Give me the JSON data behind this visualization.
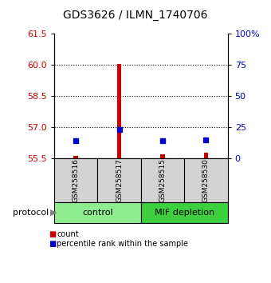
{
  "title": "GDS3626 / ILMN_1740706",
  "samples": [
    "GSM258516",
    "GSM258517",
    "GSM258515",
    "GSM258530"
  ],
  "groups": [
    {
      "name": "control",
      "indices": [
        0,
        1
      ],
      "color": "#90EE90"
    },
    {
      "name": "MIF depletion",
      "indices": [
        2,
        3
      ],
      "color": "#3ECF3E"
    }
  ],
  "count_values": [
    55.62,
    60.05,
    55.72,
    55.78
  ],
  "percentile_values": [
    56.35,
    56.9,
    56.35,
    56.38
  ],
  "ylim": [
    55.5,
    61.5
  ],
  "yticks_left": [
    55.5,
    57,
    58.5,
    60,
    61.5
  ],
  "yticks_right_pct": [
    0,
    25,
    50,
    75,
    100
  ],
  "yticks_right_labels": [
    "0",
    "25",
    "50",
    "75",
    "100%"
  ],
  "dotted_yticks": [
    57,
    58.5,
    60
  ],
  "bar_color": "#CC0000",
  "percentile_marker_color": "#0000CC",
  "left_tick_color": "#CC0000",
  "right_tick_color": "#0000CC",
  "group_box_color": "#D3D3D3",
  "title_fontsize": 10,
  "legend_count_label": "count",
  "legend_percentile_label": "percentile rank within the sample",
  "bar_width": 0.1
}
